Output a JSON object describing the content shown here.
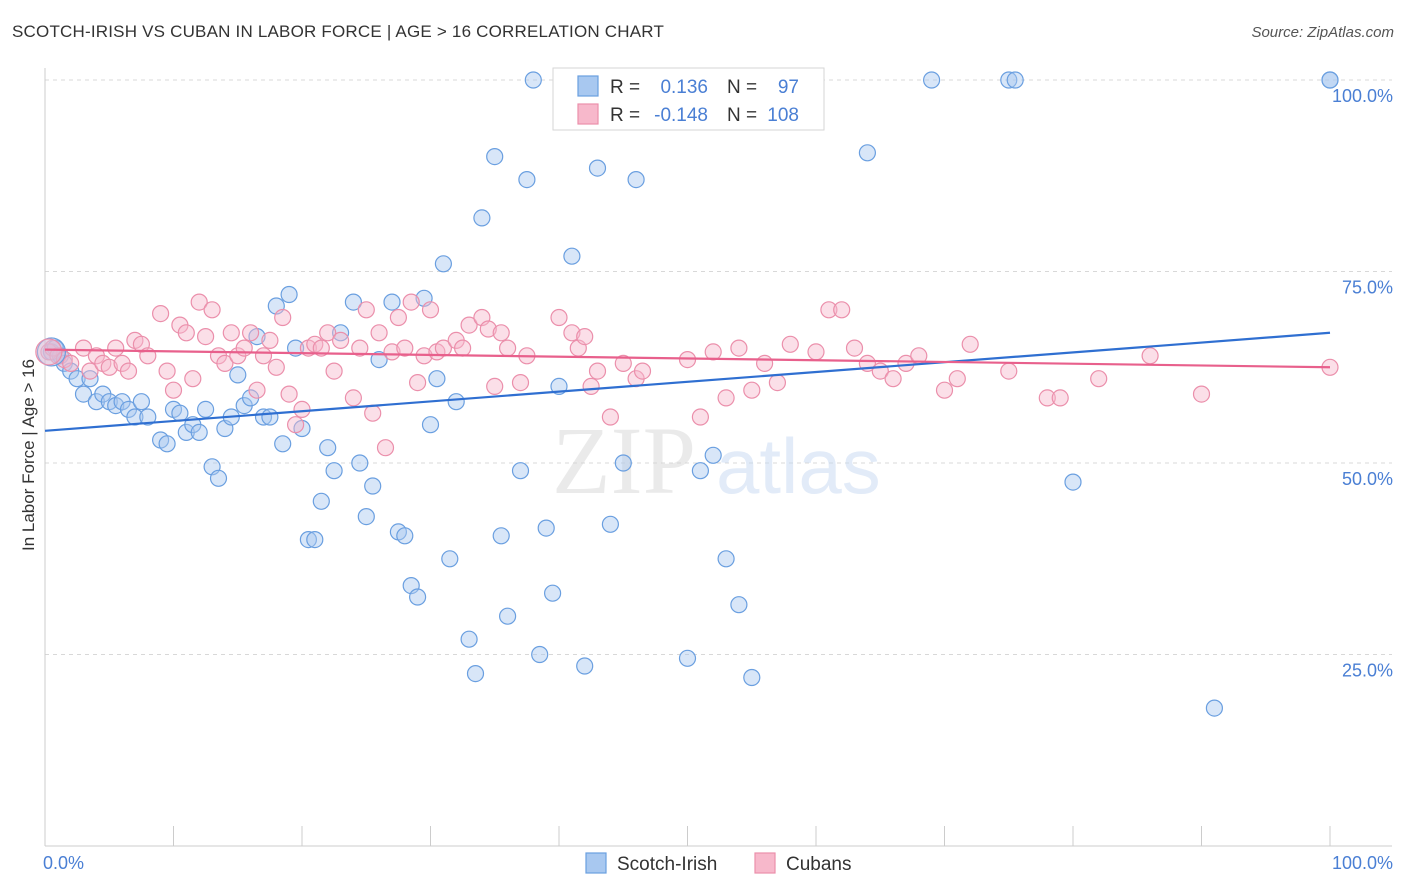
{
  "header": {
    "title": "SCOTCH-IRISH VS CUBAN IN LABOR FORCE | AGE > 16 CORRELATION CHART",
    "source": "Source: ZipAtlas.com"
  },
  "watermark": {
    "part1": "ZIP",
    "part2": "atlas"
  },
  "colors": {
    "blue_fill": "#a8c8f0",
    "blue_stroke": "#6a9fe0",
    "blue_line": "#2f6fd1",
    "pink_fill": "#f7b8cb",
    "pink_stroke": "#eb8fab",
    "pink_line": "#e8608c",
    "tick_label": "#4a7fd4",
    "grid": "#d8d8d8"
  },
  "legend_box": {
    "rows": [
      {
        "r_label": "R =",
        "r_value": "0.136",
        "n_label": "N =",
        "n_value": "97",
        "series": "blue"
      },
      {
        "r_label": "R =",
        "r_value": "-0.148",
        "n_label": "N =",
        "n_value": "108",
        "series": "pink"
      }
    ]
  },
  "chart_data": {
    "type": "scatter",
    "title": "SCOTCH-IRISH VS CUBAN IN LABOR FORCE | AGE > 16 CORRELATION CHART",
    "xlabel": "",
    "ylabel": "In Labor Force | Age > 16",
    "x_tick_labels": [
      "0.0%",
      "100.0%"
    ],
    "y_tick_labels": [
      "25.0%",
      "50.0%",
      "75.0%",
      "100.0%"
    ],
    "xlim": [
      0,
      100
    ],
    "ylim": [
      0,
      102
    ],
    "grid": true,
    "legend_position": "bottom",
    "series": [
      {
        "name": "Scotch-Irish",
        "color": "blue",
        "r": 0.136,
        "n": 97,
        "trend": {
          "x": [
            0,
            100
          ],
          "y": [
            54.2,
            67.0
          ]
        },
        "points": [
          [
            0.5,
            64.5
          ],
          [
            0.8,
            65
          ],
          [
            1.2,
            64
          ],
          [
            1.5,
            63
          ],
          [
            2,
            62
          ],
          [
            2.5,
            61
          ],
          [
            3,
            59
          ],
          [
            3.5,
            61
          ],
          [
            4,
            58
          ],
          [
            4.5,
            59
          ],
          [
            5,
            58
          ],
          [
            5.5,
            57.5
          ],
          [
            6,
            58
          ],
          [
            6.5,
            57
          ],
          [
            7,
            56
          ],
          [
            7.5,
            58
          ],
          [
            8,
            56
          ],
          [
            9,
            53
          ],
          [
            9.5,
            52.5
          ],
          [
            10,
            57
          ],
          [
            10.5,
            56.5
          ],
          [
            11,
            54
          ],
          [
            11.5,
            55
          ],
          [
            12,
            54
          ],
          [
            12.5,
            57
          ],
          [
            13,
            49.5
          ],
          [
            13.5,
            48
          ],
          [
            14,
            54.5
          ],
          [
            14.5,
            56
          ],
          [
            15,
            61.5
          ],
          [
            15.5,
            57.5
          ],
          [
            16,
            58.5
          ],
          [
            16.5,
            66.5
          ],
          [
            17,
            56
          ],
          [
            17.5,
            56
          ],
          [
            18,
            70.5
          ],
          [
            18.5,
            52.5
          ],
          [
            19,
            72
          ],
          [
            19.5,
            65
          ],
          [
            20,
            54.5
          ],
          [
            20.5,
            40
          ],
          [
            21,
            40
          ],
          [
            21.5,
            45
          ],
          [
            22,
            52
          ],
          [
            22.5,
            49
          ],
          [
            23,
            67
          ],
          [
            24,
            71
          ],
          [
            24.5,
            50
          ],
          [
            25,
            43
          ],
          [
            25.5,
            47
          ],
          [
            26,
            63.5
          ],
          [
            27,
            71
          ],
          [
            27.5,
            41
          ],
          [
            28,
            40.5
          ],
          [
            28.5,
            34
          ],
          [
            29,
            32.5
          ],
          [
            29.5,
            71.5
          ],
          [
            30,
            55
          ],
          [
            30.5,
            61
          ],
          [
            31,
            76
          ],
          [
            31.5,
            37.5
          ],
          [
            32,
            58
          ],
          [
            33,
            27
          ],
          [
            33.5,
            22.5
          ],
          [
            34,
            82
          ],
          [
            35,
            90
          ],
          [
            35.5,
            40.5
          ],
          [
            36,
            30
          ],
          [
            37,
            49
          ],
          [
            37.5,
            87
          ],
          [
            38,
            100
          ],
          [
            38.5,
            25
          ],
          [
            39,
            41.5
          ],
          [
            39.5,
            33
          ],
          [
            40,
            60
          ],
          [
            40.5,
            100
          ],
          [
            41,
            77
          ],
          [
            42,
            23.5
          ],
          [
            43,
            88.5
          ],
          [
            44,
            42
          ],
          [
            45,
            50
          ],
          [
            45.5,
            100
          ],
          [
            46,
            87
          ],
          [
            50,
            24.5
          ],
          [
            51,
            49
          ],
          [
            52,
            51
          ],
          [
            53,
            37.5
          ],
          [
            54,
            31.5
          ],
          [
            55,
            22
          ],
          [
            64,
            90.5
          ],
          [
            69,
            100
          ],
          [
            75,
            100
          ],
          [
            75.5,
            100
          ],
          [
            80,
            47.5
          ],
          [
            91,
            18
          ],
          [
            100,
            100
          ],
          [
            100,
            100
          ]
        ]
      },
      {
        "name": "Cubans",
        "color": "pink",
        "r": -0.148,
        "n": 108,
        "trend": {
          "x": [
            0,
            100
          ],
          "y": [
            64.8,
            62.5
          ]
        },
        "points": [
          [
            0.3,
            64.5
          ],
          [
            0.6,
            65
          ],
          [
            1,
            64
          ],
          [
            1.5,
            63.5
          ],
          [
            2,
            63
          ],
          [
            3,
            65
          ],
          [
            3.5,
            62
          ],
          [
            4,
            64
          ],
          [
            4.5,
            63
          ],
          [
            5,
            62.5
          ],
          [
            5.5,
            65
          ],
          [
            6,
            63
          ],
          [
            6.5,
            62
          ],
          [
            7,
            66
          ],
          [
            7.5,
            65.5
          ],
          [
            8,
            64
          ],
          [
            9,
            69.5
          ],
          [
            9.5,
            62
          ],
          [
            10,
            59.5
          ],
          [
            10.5,
            68
          ],
          [
            11,
            67
          ],
          [
            11.5,
            61
          ],
          [
            12,
            71
          ],
          [
            12.5,
            66.5
          ],
          [
            13,
            70
          ],
          [
            13.5,
            64
          ],
          [
            14,
            63
          ],
          [
            14.5,
            67
          ],
          [
            15,
            64
          ],
          [
            15.5,
            65
          ],
          [
            16,
            67
          ],
          [
            16.5,
            59.5
          ],
          [
            17,
            64
          ],
          [
            17.5,
            66
          ],
          [
            18,
            62.5
          ],
          [
            18.5,
            69
          ],
          [
            19,
            59
          ],
          [
            19.5,
            55
          ],
          [
            20,
            57
          ],
          [
            20.5,
            65
          ],
          [
            21,
            65.5
          ],
          [
            21.5,
            65
          ],
          [
            22,
            67
          ],
          [
            22.5,
            62
          ],
          [
            23,
            66
          ],
          [
            24,
            58.5
          ],
          [
            24.5,
            65
          ],
          [
            25,
            70
          ],
          [
            25.5,
            56.5
          ],
          [
            26,
            67
          ],
          [
            26.5,
            52
          ],
          [
            27,
            64.5
          ],
          [
            27.5,
            69
          ],
          [
            28,
            65
          ],
          [
            28.5,
            71
          ],
          [
            29,
            60.5
          ],
          [
            29.5,
            64
          ],
          [
            30,
            70
          ],
          [
            30.5,
            64.5
          ],
          [
            31,
            65
          ],
          [
            32,
            66
          ],
          [
            32.5,
            65
          ],
          [
            33,
            68
          ],
          [
            34,
            69
          ],
          [
            34.5,
            67.5
          ],
          [
            35,
            60
          ],
          [
            35.5,
            67
          ],
          [
            36,
            65
          ],
          [
            37,
            60.5
          ],
          [
            37.5,
            64
          ],
          [
            40,
            69
          ],
          [
            41,
            67
          ],
          [
            41.5,
            65
          ],
          [
            42,
            66.5
          ],
          [
            42.5,
            60
          ],
          [
            43,
            62
          ],
          [
            44,
            56
          ],
          [
            45,
            63
          ],
          [
            46,
            61
          ],
          [
            46.5,
            62
          ],
          [
            50,
            63.5
          ],
          [
            51,
            56
          ],
          [
            52,
            64.5
          ],
          [
            53,
            58.5
          ],
          [
            54,
            65
          ],
          [
            55,
            59.5
          ],
          [
            56,
            63
          ],
          [
            57,
            60.5
          ],
          [
            58,
            65.5
          ],
          [
            60,
            64.5
          ],
          [
            61,
            70
          ],
          [
            62,
            70
          ],
          [
            63,
            65
          ],
          [
            64,
            63
          ],
          [
            65,
            62
          ],
          [
            66,
            61
          ],
          [
            67,
            63
          ],
          [
            68,
            64
          ],
          [
            70,
            59.5
          ],
          [
            71,
            61
          ],
          [
            72,
            65.5
          ],
          [
            75,
            62
          ],
          [
            78,
            58.5
          ],
          [
            79,
            58.5
          ],
          [
            82,
            61
          ],
          [
            86,
            64
          ],
          [
            90,
            59
          ],
          [
            100,
            62.5
          ]
        ]
      }
    ]
  }
}
